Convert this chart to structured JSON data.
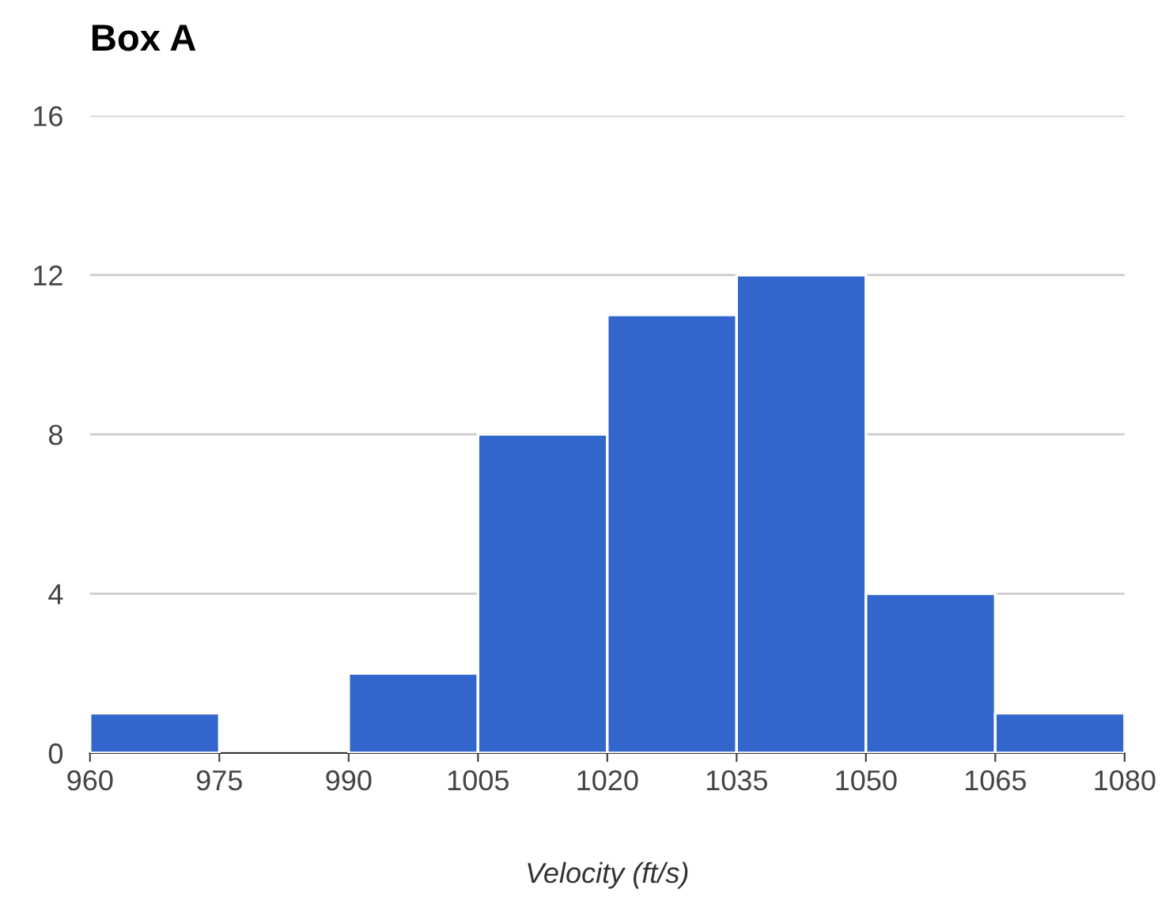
{
  "chart_data": {
    "type": "histogram",
    "title": "Box A",
    "xlabel": "Velocity (ft/s)",
    "bins": [
      960,
      975,
      990,
      1005,
      1020,
      1035,
      1050,
      1065,
      1080
    ],
    "values": [
      1,
      0,
      2,
      8,
      11,
      12,
      4,
      1
    ],
    "color": "#3366cc",
    "xlim": [
      960,
      1080
    ],
    "xticks": [
      960,
      975,
      990,
      1005,
      1020,
      1035,
      1050,
      1065,
      1080
    ],
    "ylim": [
      0,
      16
    ],
    "yticks": [
      0,
      4,
      8,
      12,
      16
    ],
    "grid": "y",
    "legend": false
  }
}
